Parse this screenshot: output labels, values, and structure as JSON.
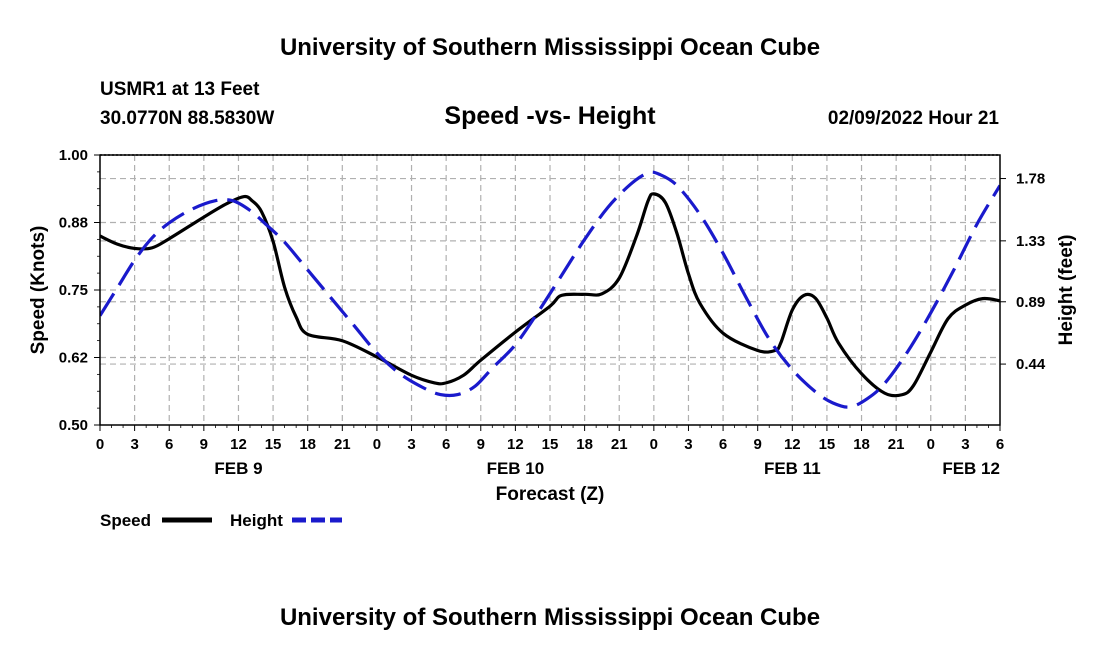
{
  "header": {
    "title": "University of Southern Mississippi Ocean Cube",
    "station": "USMR1 at 13 Feet",
    "coords": "30.0770N  88.5830W",
    "subtitle": "Speed -vs- Height",
    "datetime": "02/09/2022 Hour 21"
  },
  "footer": {
    "title": "University of Southern Mississippi Ocean Cube"
  },
  "legend": {
    "speed_label": "Speed",
    "height_label": "Height"
  },
  "colors": {
    "speed": "#000000",
    "height": "#1a1acc",
    "grid": "#b0b0b0"
  },
  "chart_data": {
    "type": "line",
    "title": "Speed -vs- Height",
    "xlabel": "Forecast (Z)",
    "ylabel": "Speed (Knots)",
    "ylabel_right": "Height (feet)",
    "x_unit": "hours since 00Z FEB 9",
    "xlim": [
      0,
      78
    ],
    "ylim": [
      0.5,
      1.0
    ],
    "ylim_right": [
      0.0,
      1.95
    ],
    "x_tick_values": [
      0,
      3,
      6,
      9,
      12,
      15,
      18,
      21,
      24,
      27,
      30,
      33,
      36,
      39,
      42,
      45,
      48,
      51,
      54,
      57,
      60,
      63,
      66,
      69,
      72,
      75,
      78
    ],
    "x_tick_labels": [
      "0",
      "3",
      "6",
      "9",
      "12",
      "15",
      "18",
      "21",
      "0",
      "3",
      "6",
      "9",
      "12",
      "15",
      "18",
      "21",
      "0",
      "3",
      "6",
      "9",
      "12",
      "15",
      "18",
      "21",
      "0",
      "3",
      "6"
    ],
    "y_tick_labels": [
      "1.00",
      "0.88",
      "0.75",
      "0.62",
      "0.50"
    ],
    "y_tick_values": [
      1.0,
      0.875,
      0.75,
      0.625,
      0.5
    ],
    "y_right_tick_labels": [
      "1.78",
      "1.33",
      "0.89",
      "0.44"
    ],
    "y_right_tick_values": [
      1.78,
      1.33,
      0.89,
      0.44
    ],
    "date_labels": [
      {
        "label": "FEB 9",
        "x": 12
      },
      {
        "label": "FEB 10",
        "x": 36
      },
      {
        "label": "FEB 11",
        "x": 60
      },
      {
        "label": "FEB 12",
        "x": 75.5
      }
    ],
    "series": [
      {
        "name": "Speed",
        "axis": "left",
        "x": [
          0,
          1.5,
          3,
          4.5,
          6,
          9,
          11,
          12.5,
          13.2,
          14,
          15,
          16,
          17,
          18,
          21,
          24,
          27,
          29,
          30,
          31.5,
          33,
          36,
          39,
          40,
          42,
          43.5,
          45,
          46.5,
          47.5,
          48,
          49,
          50,
          51,
          52,
          54,
          57,
          58.5,
          59,
          60,
          61,
          62,
          63,
          64,
          66,
          68,
          69.5,
          70.5,
          72,
          73.5,
          75,
          76.5,
          78
        ],
        "values": [
          0.85,
          0.835,
          0.827,
          0.828,
          0.845,
          0.885,
          0.91,
          0.923,
          0.915,
          0.895,
          0.84,
          0.755,
          0.7,
          0.668,
          0.656,
          0.626,
          0.592,
          0.578,
          0.578,
          0.592,
          0.62,
          0.672,
          0.72,
          0.74,
          0.742,
          0.743,
          0.772,
          0.85,
          0.915,
          0.928,
          0.912,
          0.855,
          0.78,
          0.725,
          0.67,
          0.638,
          0.638,
          0.652,
          0.713,
          0.74,
          0.735,
          0.698,
          0.652,
          0.595,
          0.559,
          0.556,
          0.573,
          0.635,
          0.697,
          0.722,
          0.734,
          0.73
        ]
      },
      {
        "name": "Height",
        "axis": "right",
        "x": [
          0,
          1.5,
          3,
          4.5,
          6,
          8,
          10,
          11.5,
          13,
          14.5,
          16,
          18,
          20,
          22,
          24,
          26,
          28,
          29.5,
          31,
          32.5,
          34,
          36,
          38,
          40,
          42,
          44,
          46,
          47.5,
          48.5,
          50,
          52,
          54,
          56,
          58,
          60,
          62,
          63.5,
          65,
          66.5,
          68,
          70,
          72,
          74,
          76,
          78
        ],
        "values": [
          0.79,
          0.99,
          1.19,
          1.35,
          1.46,
          1.56,
          1.62,
          1.62,
          1.55,
          1.44,
          1.32,
          1.12,
          0.92,
          0.72,
          0.52,
          0.37,
          0.27,
          0.22,
          0.22,
          0.28,
          0.41,
          0.58,
          0.82,
          1.08,
          1.34,
          1.57,
          1.74,
          1.82,
          1.81,
          1.73,
          1.52,
          1.24,
          0.92,
          0.62,
          0.4,
          0.24,
          0.16,
          0.13,
          0.19,
          0.3,
          0.53,
          0.81,
          1.12,
          1.45,
          1.73
        ]
      }
    ]
  }
}
